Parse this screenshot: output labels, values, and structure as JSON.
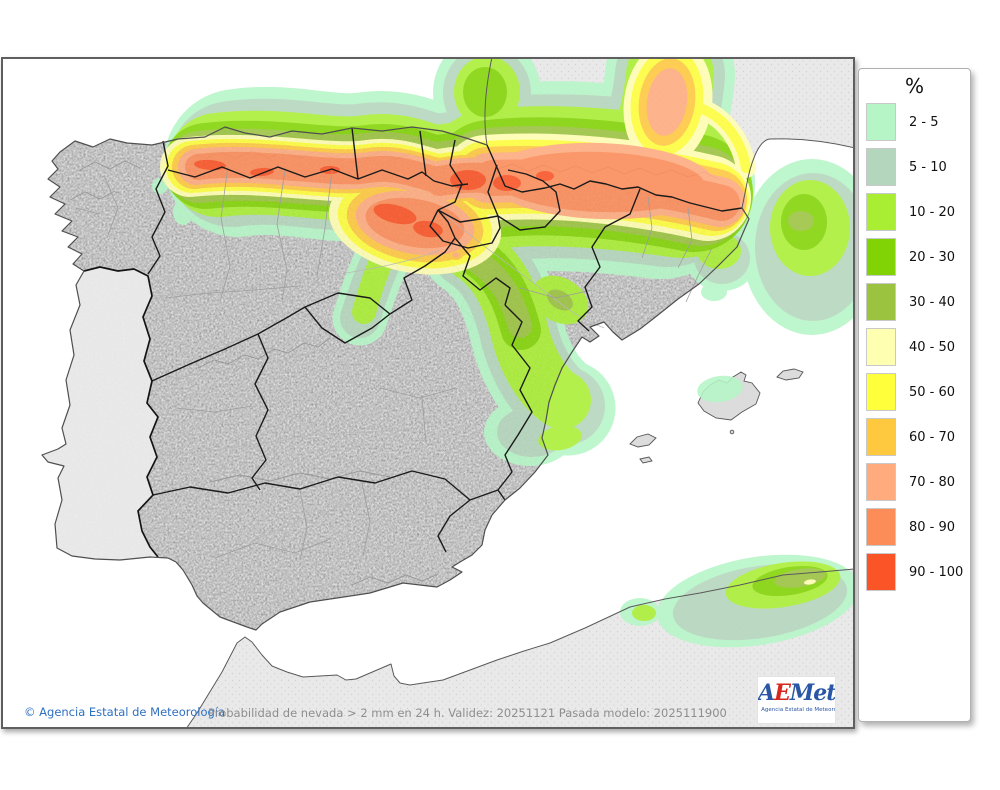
{
  "map": {
    "footer": {
      "copyright": "© Agencia Estatal de Meteorología",
      "description": "Probabilidad de nevada > 2 mm en 24 h. Validez: 20251121 Pasada modelo: 2025111900"
    },
    "logo": {
      "letter_a": "A",
      "letter_e": "E",
      "letters_met": "Met",
      "caption": "Agencia Estatal de Meteorología"
    }
  },
  "legend": {
    "title": "%",
    "entries": [
      {
        "label": "2 - 5",
        "color": "#b6f5c6"
      },
      {
        "label": "5 - 10",
        "color": "#b4d6bc"
      },
      {
        "label": "10 - 20",
        "color": "#aaee33"
      },
      {
        "label": "20 - 30",
        "color": "#82d305"
      },
      {
        "label": "30 - 40",
        "color": "#9bc33f"
      },
      {
        "label": "40 - 50",
        "color": "#ffffb2"
      },
      {
        "label": "50 - 60",
        "color": "#ffff3c"
      },
      {
        "label": "60 - 70",
        "color": "#ffc93f"
      },
      {
        "label": "70 - 80",
        "color": "#ffab7e"
      },
      {
        "label": "80 - 90",
        "color": "#fc8d59"
      },
      {
        "label": "90 - 100",
        "color": "#fb5426"
      }
    ]
  }
}
